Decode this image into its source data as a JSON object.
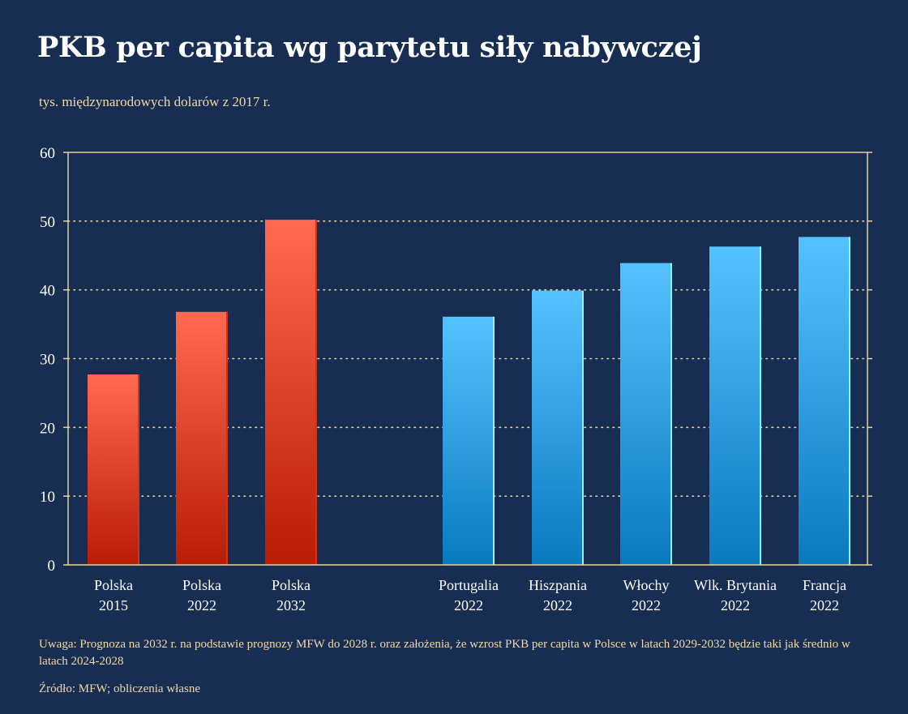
{
  "title": "PKB per capita wg parytetu siły nabywczej",
  "subtitle": "tys. międzynarodowych dolarów z 2017 r.",
  "note": "Uwaga: Prognoza na 2032 r. na podstawie prognozy MFW do 2028 r. oraz założenia, że wzrost PKB per capita w Polsce w latach 2029-2032 będzie taki jak średnio w latach 2024-2028",
  "source": "Źródło: MFW; obliczenia własne",
  "colors": {
    "background": "#172d52",
    "axis": "#e8d2a0",
    "text": "#ffffff",
    "accent_text": "#f3d9a8",
    "poland_top": "#ff6a50",
    "poland_bottom": "#b81c06",
    "others_top": "#55c2ff",
    "others_bottom": "#0a79c0"
  },
  "chart_data": {
    "type": "bar",
    "ylim": [
      0,
      60
    ],
    "yticks": [
      0,
      10,
      20,
      30,
      40,
      50,
      60
    ],
    "grid": true,
    "categories": [
      [
        "Polska",
        "2015"
      ],
      [
        "Polska",
        "2022"
      ],
      [
        "Polska",
        "2032"
      ],
      [
        "Portugalia",
        "2022"
      ],
      [
        "Hiszpania",
        "2022"
      ],
      [
        "Włochy",
        "2022"
      ],
      [
        "Wlk. Brytania",
        "2022"
      ],
      [
        "Francja",
        "2022"
      ]
    ],
    "values": [
      27.7,
      36.8,
      50.2,
      36.1,
      39.9,
      43.9,
      46.3,
      47.7
    ],
    "groups": [
      "poland",
      "poland",
      "poland",
      "others",
      "others",
      "others",
      "others",
      "others"
    ]
  }
}
